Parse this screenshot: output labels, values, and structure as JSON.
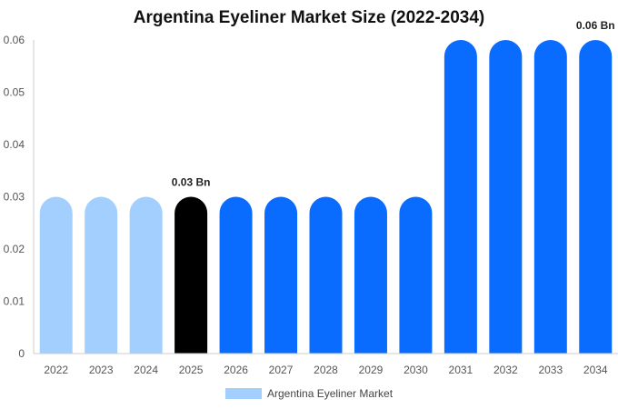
{
  "chart_data": {
    "type": "bar",
    "title": "Argentina Eyeliner Market Size (2022-2034)",
    "categories": [
      "2022",
      "2023",
      "2024",
      "2025",
      "2026",
      "2027",
      "2028",
      "2029",
      "2030",
      "2031",
      "2032",
      "2033",
      "2034"
    ],
    "series": [
      {
        "name": "Argentina Eyeliner Market",
        "values": [
          0.03,
          0.03,
          0.03,
          0.03,
          0.03,
          0.03,
          0.03,
          0.03,
          0.03,
          0.06,
          0.06,
          0.06,
          0.06
        ]
      }
    ],
    "ylim": [
      0,
      0.06
    ],
    "yticks": [
      "0",
      "0.01",
      "0.02",
      "0.03",
      "0.04",
      "0.05",
      "0.06"
    ],
    "data_labels": [
      {
        "category": "2025",
        "text": "0.03 Bn"
      },
      {
        "category": "2034",
        "text": "0.06 Bn"
      }
    ],
    "bar_colors": [
      "#a3cfff",
      "#a3cfff",
      "#a3cfff",
      "#000000",
      "#0a6cff",
      "#0a6cff",
      "#0a6cff",
      "#0a6cff",
      "#0a6cff",
      "#0a6cff",
      "#0a6cff",
      "#0a6cff",
      "#0a6cff"
    ],
    "legend_color": "#a3cfff",
    "legend_position": "bottom-center",
    "grid": false
  }
}
